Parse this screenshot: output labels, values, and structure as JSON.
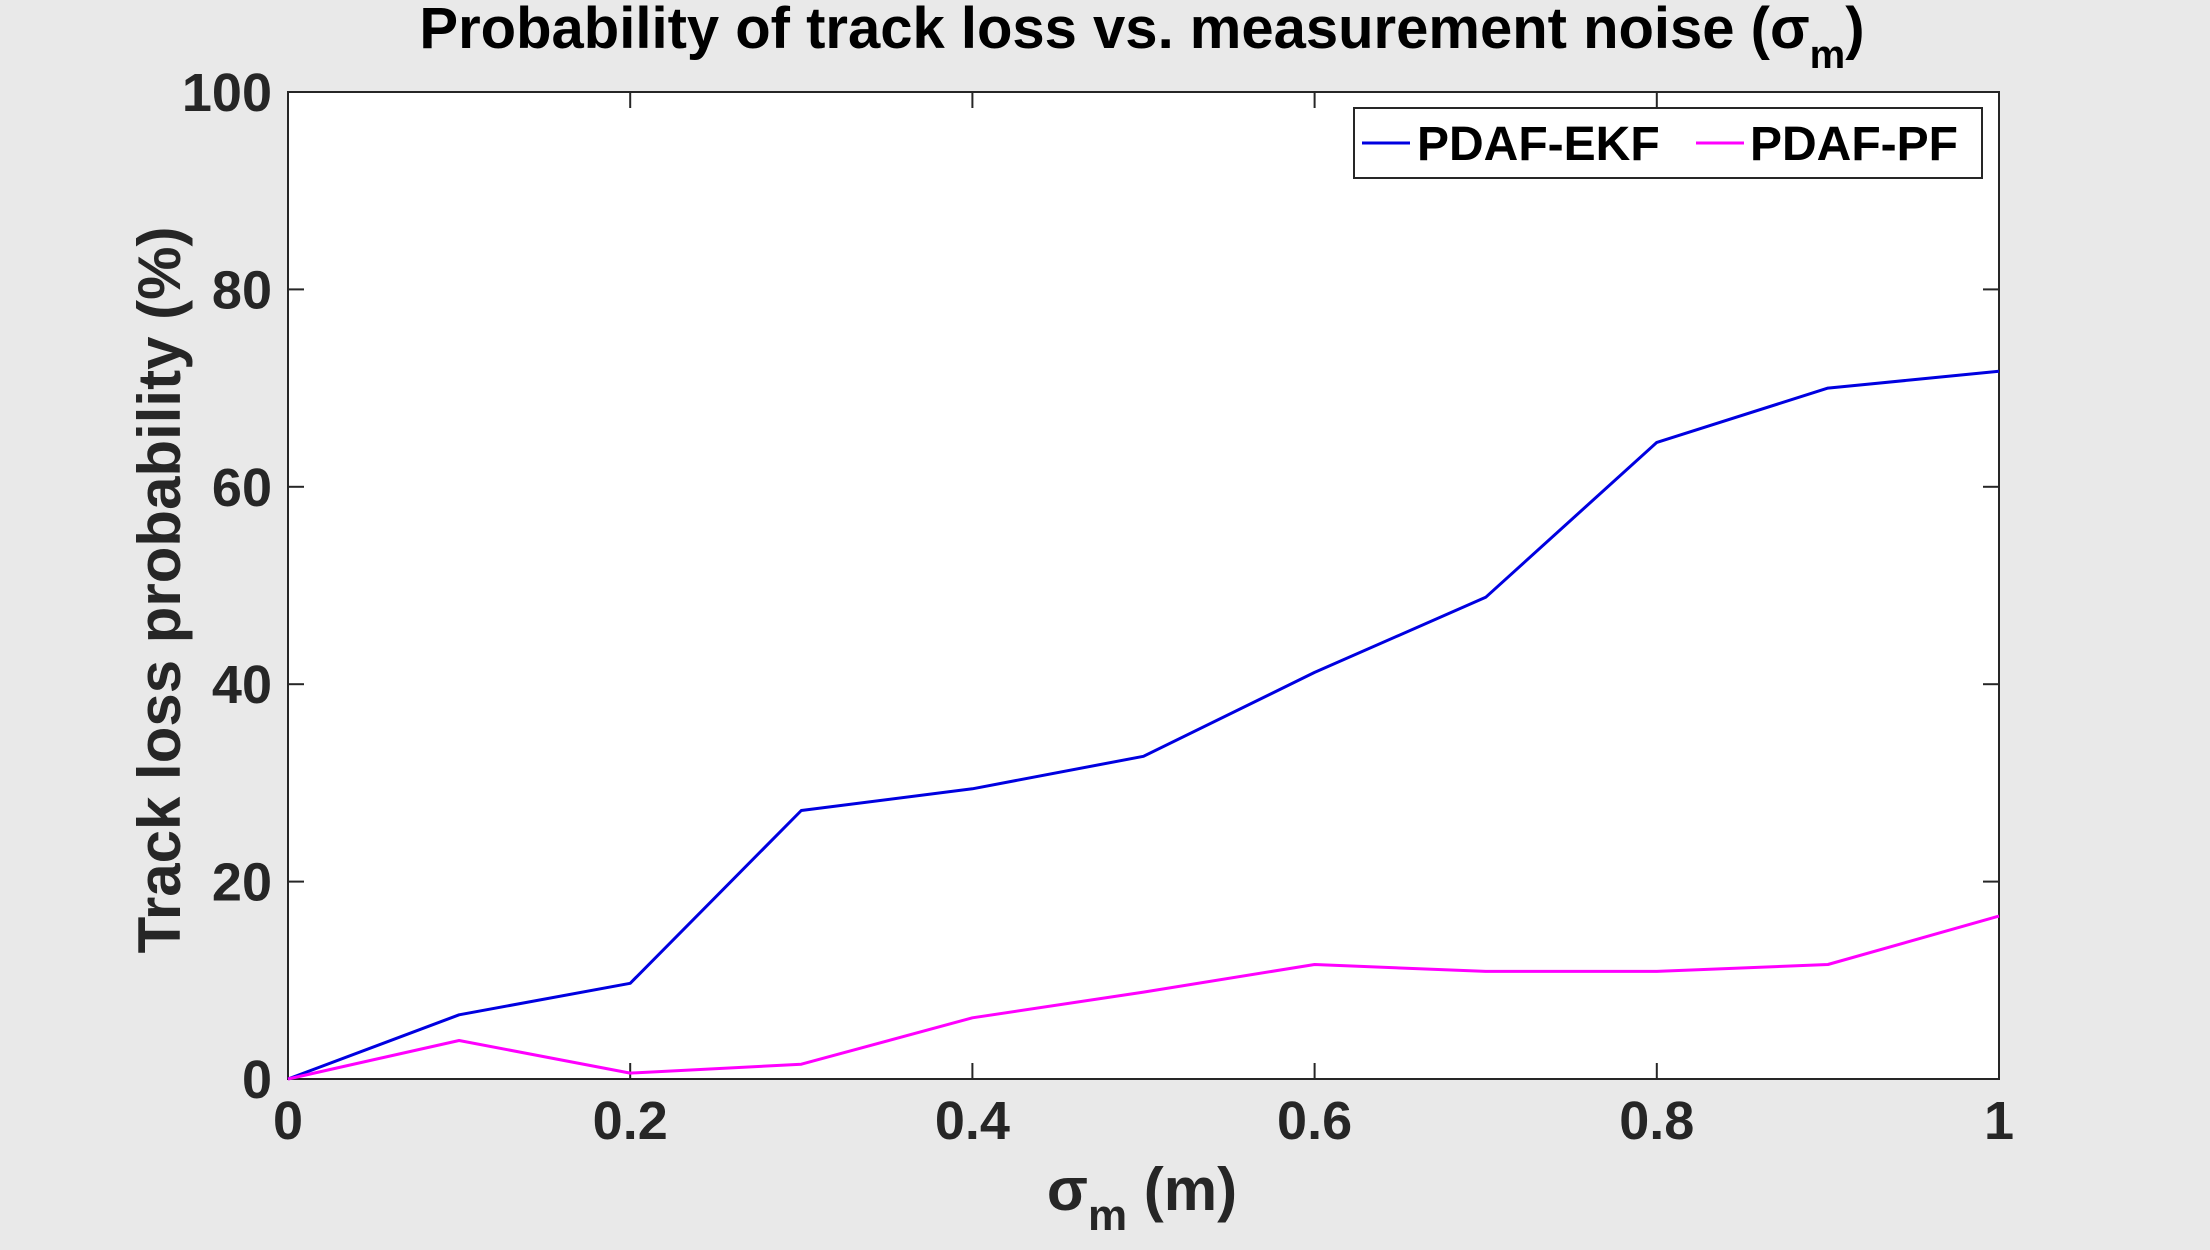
{
  "chart_data": {
    "type": "line",
    "title": {
      "main": "Probability of track loss vs. measurement noise (σ",
      "sub": "m",
      "end": ")"
    },
    "xlabel": {
      "main": "σ",
      "sub": "m",
      "end": " (m)"
    },
    "ylabel": "Track loss probability (%)",
    "xlim": [
      0,
      1
    ],
    "ylim": [
      0,
      100
    ],
    "xticks": [
      0,
      0.2,
      0.4,
      0.6,
      0.8,
      1
    ],
    "xtick_labels": [
      "0",
      "0.2",
      "0.4",
      "0.6",
      "0.8",
      "1"
    ],
    "yticks": [
      0,
      20,
      40,
      60,
      80,
      100
    ],
    "ytick_labels": [
      "0",
      "20",
      "40",
      "60",
      "80",
      "100"
    ],
    "grid": false,
    "legend_position": "top-right",
    "x": [
      0,
      0.1,
      0.2,
      0.3,
      0.4,
      0.5,
      0.6,
      0.7,
      0.8,
      0.9,
      1.0
    ],
    "series": [
      {
        "name": "PDAF-EKF",
        "color": "#0000e0",
        "values": [
          0,
          6.5,
          9.7,
          27.2,
          29.4,
          32.7,
          41.2,
          48.8,
          64.5,
          70.0,
          71.7
        ]
      },
      {
        "name": "PDAF-PF",
        "color": "#ff00ff",
        "values": [
          0,
          3.9,
          0.6,
          1.5,
          6.2,
          8.8,
          11.6,
          10.9,
          10.9,
          11.6,
          16.5
        ]
      }
    ]
  }
}
